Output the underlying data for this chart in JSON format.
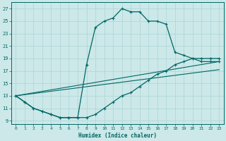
{
  "xlabel": "Humidex (Indice chaleur)",
  "bg_color": "#cce8e8",
  "grid_color": "#b0d8d8",
  "line_color": "#006666",
  "xlim": [
    -0.5,
    23.5
  ],
  "ylim": [
    8.5,
    28
  ],
  "xticks": [
    0,
    1,
    2,
    3,
    4,
    5,
    6,
    7,
    8,
    9,
    10,
    11,
    12,
    13,
    14,
    15,
    16,
    17,
    18,
    19,
    20,
    21,
    22,
    23
  ],
  "yticks": [
    9,
    11,
    13,
    15,
    17,
    19,
    21,
    23,
    25,
    27
  ],
  "curve_top_x": [
    0,
    1,
    2,
    3,
    4,
    5,
    6,
    7,
    8,
    9,
    10,
    11,
    12,
    13,
    14,
    15,
    16,
    17,
    18,
    19,
    20,
    21,
    22,
    23
  ],
  "curve_top_y": [
    13,
    12,
    11,
    10.5,
    10,
    9.5,
    9.5,
    9.5,
    18,
    24,
    25,
    25.5,
    27,
    26.5,
    26.5,
    25,
    25,
    24.5,
    20,
    19.5,
    19,
    18.5,
    18.5,
    18.5
  ],
  "curve_bot_x": [
    0,
    1,
    2,
    3,
    4,
    5,
    6,
    7,
    8,
    9,
    10,
    11,
    12,
    13,
    14,
    15,
    16,
    17,
    18,
    19,
    20,
    21,
    22,
    23
  ],
  "curve_bot_y": [
    13,
    12,
    11,
    10.5,
    10,
    9.5,
    9.5,
    9.5,
    9.5,
    10,
    11,
    12,
    13,
    13.5,
    14.5,
    15.5,
    16.5,
    17,
    18,
    18.5,
    19,
    19,
    19,
    19
  ],
  "line1_x": [
    0,
    23
  ],
  "line1_y": [
    13,
    18.5
  ],
  "line2_x": [
    0,
    23
  ],
  "line2_y": [
    13,
    17.2
  ],
  "figsize": [
    3.2,
    2.0
  ],
  "dpi": 100
}
